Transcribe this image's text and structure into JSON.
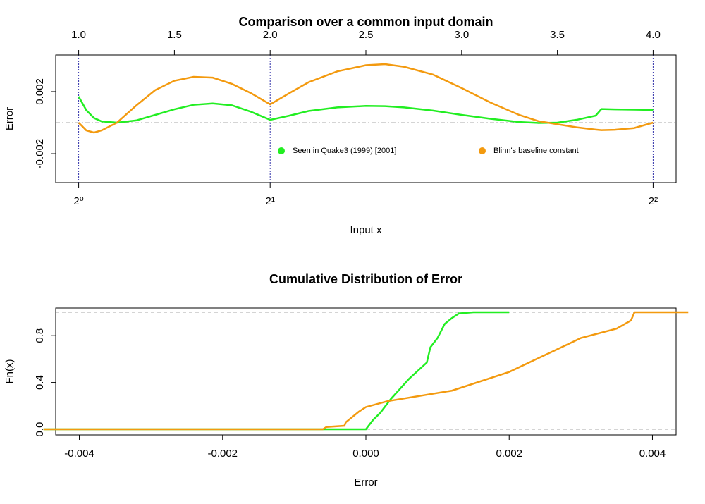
{
  "chart_data": [
    {
      "type": "line",
      "title": "Comparison over a common input domain",
      "x_label": "Input x",
      "y_label": "Error",
      "x": [
        1.0,
        1.04,
        1.08,
        1.12,
        1.2,
        1.3,
        1.4,
        1.5,
        1.6,
        1.7,
        1.8,
        1.9,
        2.0,
        2.1,
        2.2,
        2.35,
        2.5,
        2.6,
        2.7,
        2.85,
        3.0,
        3.15,
        3.3,
        3.4,
        3.5,
        3.6,
        3.7,
        3.73,
        3.8,
        3.9,
        4.0
      ],
      "series": [
        {
          "name": "Seen in Quake3 (1999) [2001]",
          "color": "#22ee22",
          "values": [
            0.00168,
            0.0008,
            0.0003,
            8e-05,
            0.0,
            0.00014,
            0.0005,
            0.00086,
            0.00115,
            0.00124,
            0.00112,
            0.0007,
            0.00018,
            0.00045,
            0.00075,
            0.00098,
            0.00108,
            0.00106,
            0.00098,
            0.00078,
            0.0005,
            0.00025,
            4e-05,
            -2e-05,
            0.0,
            0.00018,
            0.00045,
            0.00088,
            0.00086,
            0.00084,
            0.00082
          ]
        },
        {
          "name": "Blinn's baseline constant",
          "color": "#f39a0f",
          "values": [
            0.0,
            -0.0005,
            -0.00064,
            -0.0005,
            0.0,
            0.0011,
            0.0021,
            0.0027,
            0.00295,
            0.0029,
            0.0025,
            0.0019,
            0.00118,
            0.0019,
            0.0026,
            0.0033,
            0.0037,
            0.00377,
            0.0036,
            0.0031,
            0.00223,
            0.0013,
            0.0005,
            0.0001,
            -0.0001,
            -0.0003,
            -0.00045,
            -0.00048,
            -0.00046,
            -0.00035,
            0.0
          ]
        }
      ],
      "xlim": [
        0.88,
        4.12
      ],
      "ylim": [
        -0.00386,
        0.00436
      ],
      "xticks": [
        {
          "value": 1,
          "label": "2⁰"
        },
        {
          "value": 2,
          "label": "2¹"
        },
        {
          "value": 4,
          "label": "2²"
        }
      ],
      "x2ticks": [
        {
          "value": 1,
          "label": "1.0"
        },
        1.5,
        {
          "value": 2,
          "label": "2.0"
        },
        2.5,
        {
          "value": 3,
          "label": "3.0"
        },
        3.5,
        {
          "value": 4,
          "label": "4.0"
        }
      ],
      "yticks": [
        -0.002,
        0.002
      ],
      "xtick_lines": true,
      "hlines": [
        0
      ],
      "legend": "bottom"
    },
    {
      "type": "line",
      "title": "Cumulative Distribution of Error",
      "x_label": "Error",
      "y_label": "Fn(x)",
      "series": [
        {
          "name": null,
          "color": "#22ee22",
          "x": [
            -0.0045,
            0.0,
            0.0001,
            0.0002,
            0.00035,
            0.0006,
            0.00085,
            0.0009,
            0.001,
            0.0011,
            0.0012,
            0.0013,
            0.0015,
            0.002
          ],
          "values": [
            0,
            0,
            0.08,
            0.14,
            0.26,
            0.43,
            0.57,
            0.7,
            0.78,
            0.9,
            0.95,
            0.99,
            1,
            1
          ]
        },
        {
          "name": null,
          "color": "#f39a0f",
          "x": [
            -0.0045,
            -0.0006,
            -0.00055,
            -0.0003,
            -0.00028,
            -0.0002,
            -0.0001,
            0.0,
            0.0003,
            0.0012,
            0.002,
            0.0029,
            0.003,
            0.0035,
            0.0037,
            0.00375,
            0.0045
          ],
          "values": [
            0,
            0,
            0.02,
            0.03,
            0.06,
            0.1,
            0.15,
            0.19,
            0.24,
            0.33,
            0.49,
            0.75,
            0.78,
            0.86,
            0.93,
            1,
            1
          ]
        }
      ],
      "xlim": [
        -0.00433,
        0.00433
      ],
      "ylim": [
        -0.048,
        1.036
      ],
      "xticks": [
        -0.004,
        -0.002,
        {
          "value": 0,
          "label": "0.000"
        },
        0.002,
        0.004
      ],
      "yticks": [
        {
          "value": 0,
          "label": "0.0"
        },
        0.4,
        0.8
      ],
      "hlines": [
        0,
        1
      ]
    }
  ]
}
